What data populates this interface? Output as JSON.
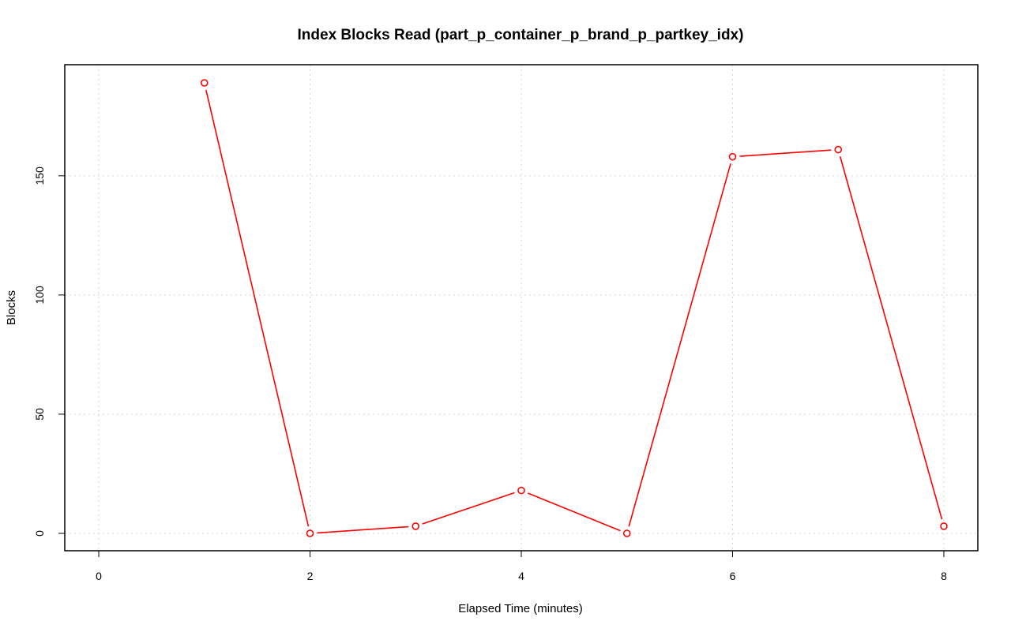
{
  "chart_data": {
    "type": "line",
    "title": "Index Blocks Read (part_p_container_p_brand_p_partkey_idx)",
    "xlabel": "Elapsed Time (minutes)",
    "ylabel": "Blocks",
    "xlim": [
      0,
      8
    ],
    "ylim": [
      0,
      189
    ],
    "x_ticks": [
      0,
      2,
      4,
      6,
      8
    ],
    "y_ticks": [
      0,
      50,
      100,
      150
    ],
    "grid": true,
    "series": [
      {
        "color": "#ff0000",
        "x": [
          1,
          2,
          3,
          4,
          5,
          6,
          7,
          8
        ],
        "y": [
          189,
          0,
          3,
          18,
          0,
          158,
          161,
          3
        ]
      }
    ]
  }
}
